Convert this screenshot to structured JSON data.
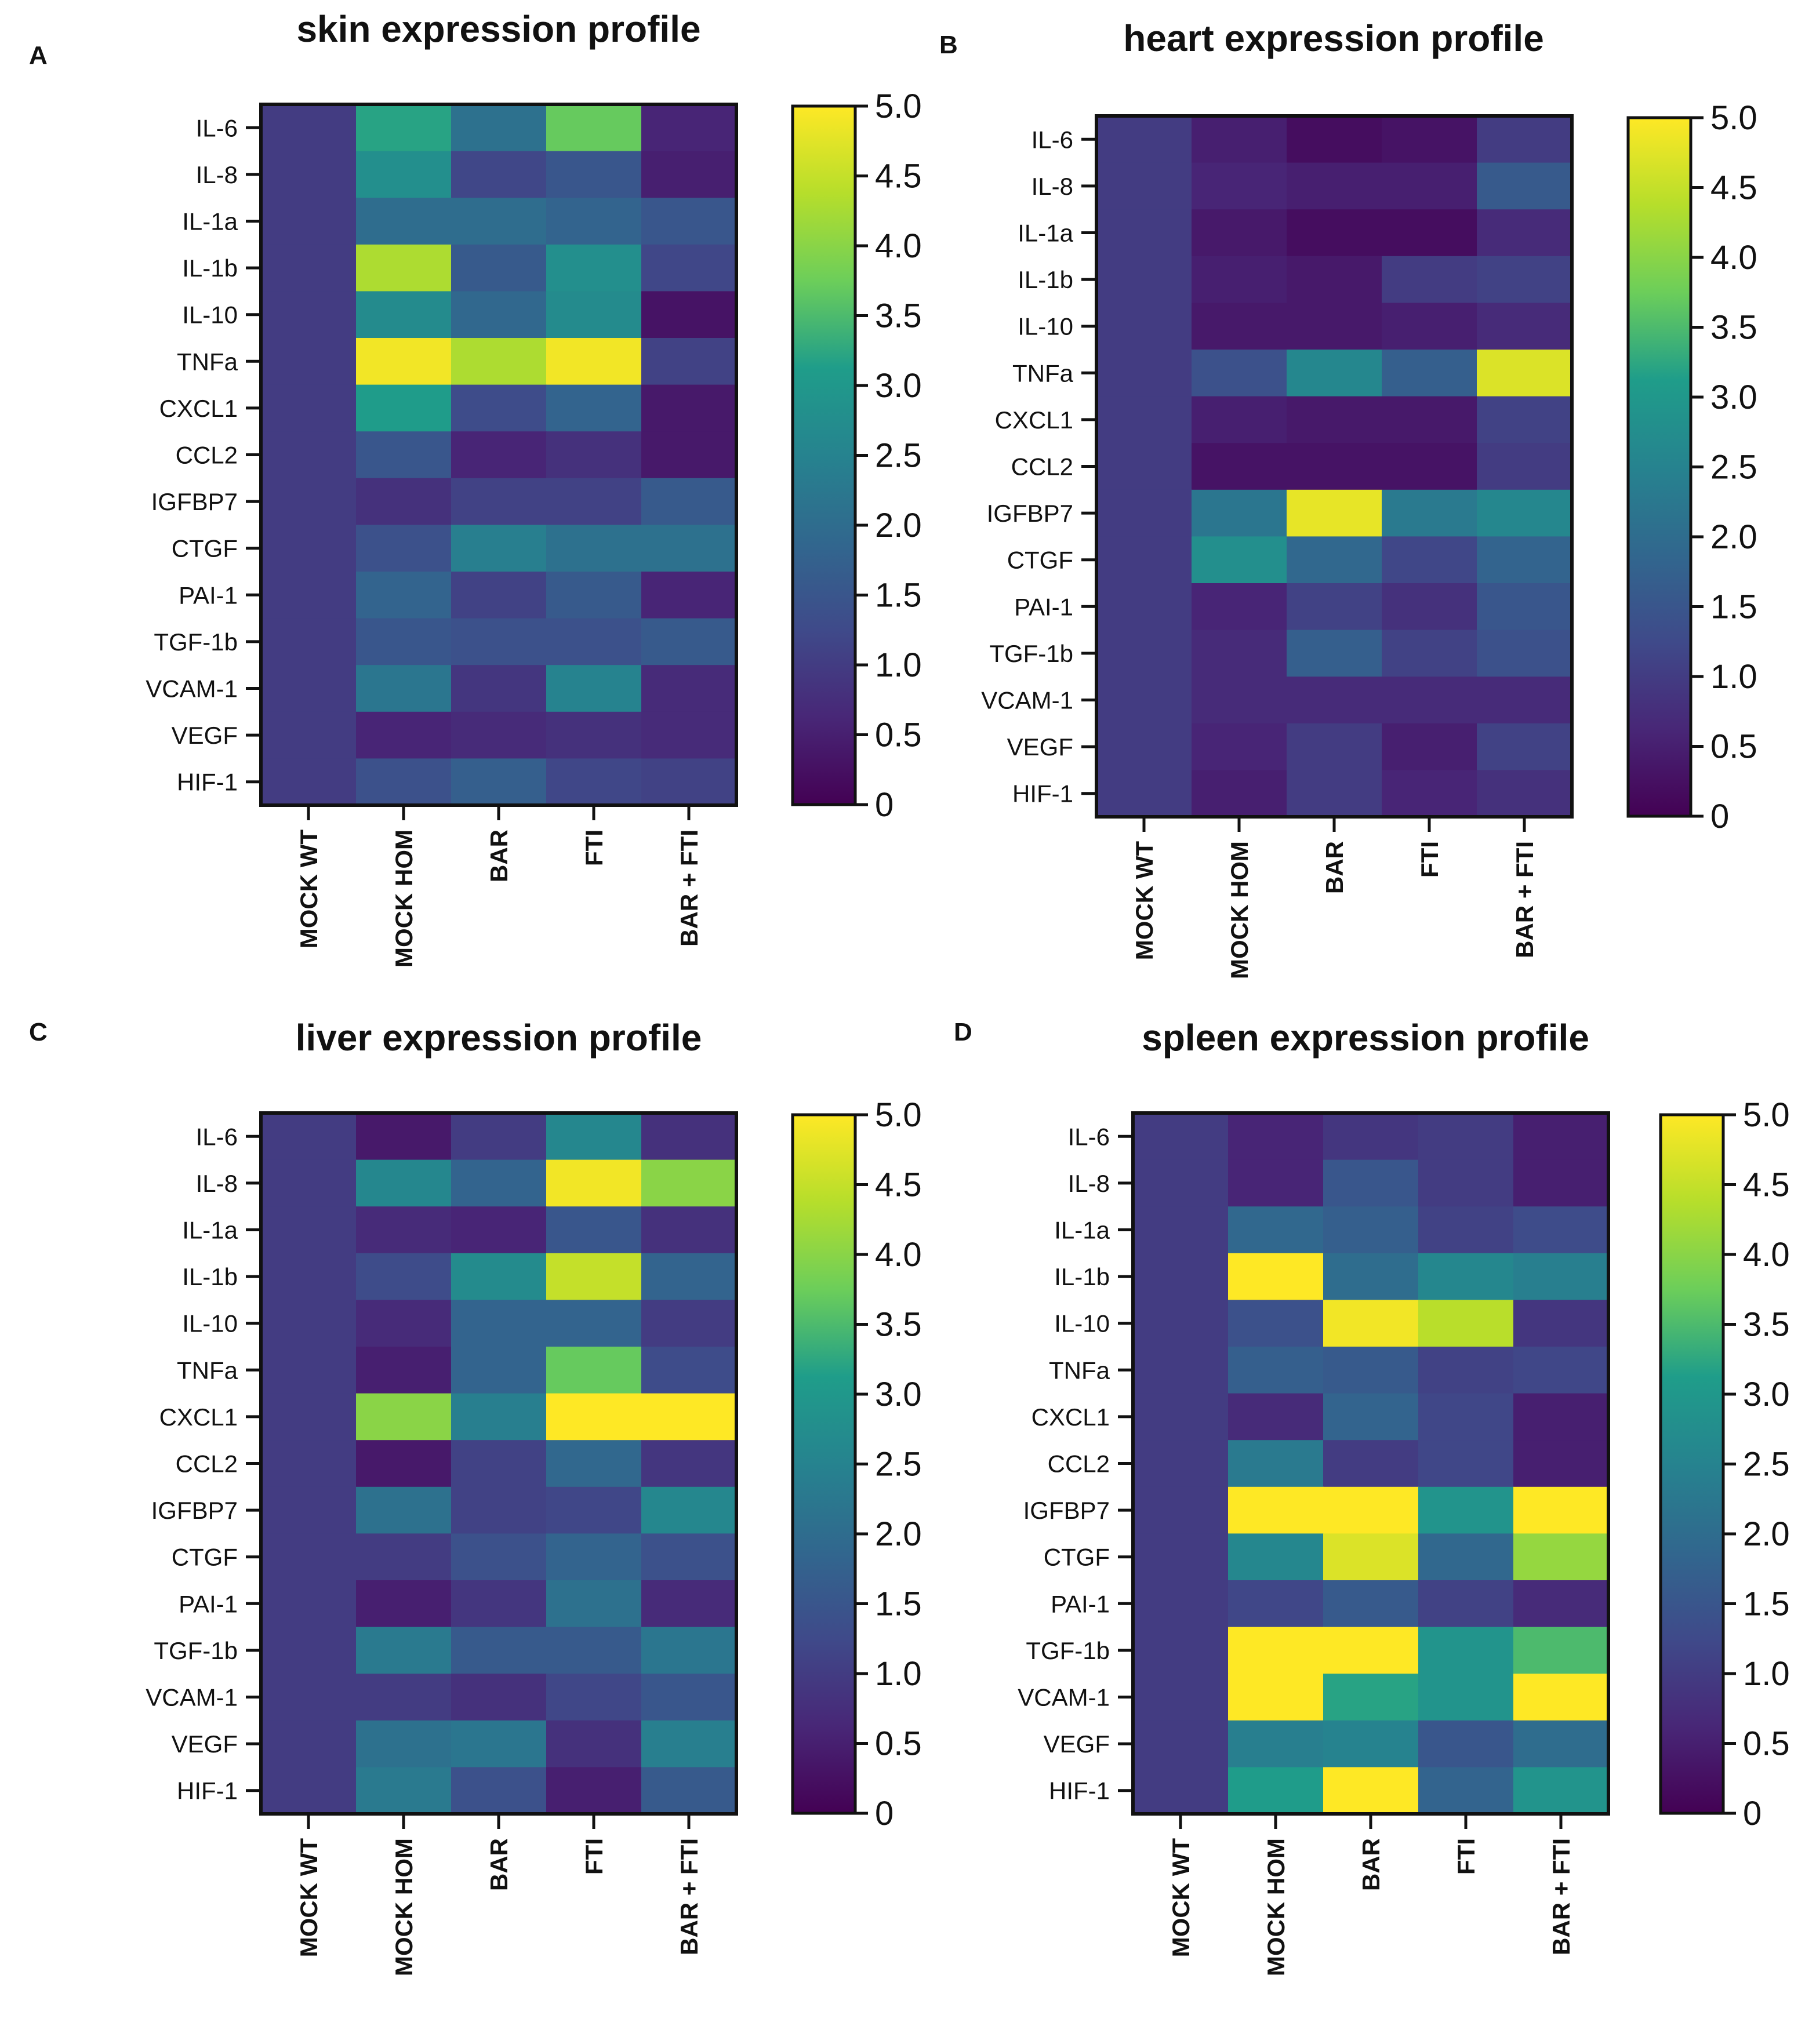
{
  "colormap": {
    "name": "viridis",
    "stops": [
      "#440154",
      "#482777",
      "#3f4a8a",
      "#31678e",
      "#26838f",
      "#1f9d8a",
      "#6cce5a",
      "#b6de2b",
      "#fee825"
    ]
  },
  "chart_data": [
    {
      "type": "heatmap",
      "panel_label": "A",
      "title": "skin expression profile",
      "rows": [
        "IL-6",
        "IL-8",
        "IL-1a",
        "IL-1b",
        "IL-10",
        "TNFa",
        "CXCL1",
        "CCL2",
        "IGFBP7",
        "CTGF",
        "PAI-1",
        "TGF-1b",
        "VCAM-1",
        "VEGF",
        "HIF-1"
      ],
      "columns": [
        "MOCK WT",
        "MOCK HOM",
        "BAR",
        "FTI",
        "BAR + FTI"
      ],
      "values": [
        [
          1.0,
          3.2,
          2.1,
          3.7,
          0.6
        ],
        [
          1.0,
          2.8,
          1.2,
          1.5,
          0.5
        ],
        [
          1.0,
          2.0,
          2.0,
          1.8,
          1.5
        ],
        [
          1.0,
          4.3,
          1.6,
          2.8,
          1.2
        ],
        [
          1.0,
          2.7,
          1.9,
          2.7,
          0.3
        ],
        [
          1.0,
          4.9,
          4.3,
          4.9,
          1.1
        ],
        [
          1.0,
          3.1,
          1.3,
          1.8,
          0.4
        ],
        [
          1.0,
          1.5,
          0.6,
          0.8,
          0.4
        ],
        [
          1.0,
          0.8,
          1.1,
          1.1,
          1.6
        ],
        [
          1.0,
          1.4,
          2.4,
          2.1,
          2.1
        ],
        [
          1.0,
          1.8,
          1.1,
          1.6,
          0.6
        ],
        [
          1.0,
          1.5,
          1.4,
          1.4,
          1.6
        ],
        [
          1.0,
          2.2,
          0.9,
          2.5,
          0.7
        ],
        [
          1.0,
          0.6,
          0.7,
          0.8,
          0.7
        ],
        [
          1.0,
          1.4,
          1.7,
          1.2,
          1.1
        ]
      ],
      "colorbar": {
        "min": 0,
        "max": 5,
        "ticks": [
          "0",
          "0.5",
          "1.0",
          "1.5",
          "2.0",
          "2.5",
          "3.0",
          "3.5",
          "4.0",
          "4.5",
          "5.0"
        ]
      }
    },
    {
      "type": "heatmap",
      "panel_label": "B",
      "title": "heart expression profile",
      "rows": [
        "IL-6",
        "IL-8",
        "IL-1a",
        "IL-1b",
        "IL-10",
        "TNFa",
        "CXCL1",
        "CCL2",
        "IGFBP7",
        "CTGF",
        "PAI-1",
        "TGF-1b",
        "VCAM-1",
        "VEGF",
        "HIF-1"
      ],
      "columns": [
        "MOCK WT",
        "MOCK HOM",
        "BAR",
        "FTI",
        "BAR + FTI"
      ],
      "values": [
        [
          1.0,
          0.5,
          0.2,
          0.3,
          1.0
        ],
        [
          1.0,
          0.6,
          0.5,
          0.5,
          1.6
        ],
        [
          1.0,
          0.4,
          0.2,
          0.2,
          0.7
        ],
        [
          1.0,
          0.5,
          0.4,
          1.0,
          1.1
        ],
        [
          1.0,
          0.4,
          0.4,
          0.5,
          0.7
        ],
        [
          1.0,
          1.4,
          2.6,
          1.7,
          4.7
        ],
        [
          1.0,
          0.5,
          0.4,
          0.4,
          1.1
        ],
        [
          1.0,
          0.3,
          0.3,
          0.3,
          1.0
        ],
        [
          1.0,
          2.2,
          4.8,
          2.3,
          2.6
        ],
        [
          1.0,
          2.8,
          1.9,
          1.2,
          1.8
        ],
        [
          1.0,
          0.6,
          1.1,
          0.8,
          1.5
        ],
        [
          1.0,
          0.7,
          1.7,
          1.1,
          1.4
        ],
        [
          1.0,
          0.7,
          0.7,
          0.7,
          0.7
        ],
        [
          1.0,
          0.6,
          1.0,
          0.5,
          1.1
        ],
        [
          1.0,
          0.5,
          1.0,
          0.6,
          0.8
        ]
      ],
      "colorbar": {
        "min": 0,
        "max": 5,
        "ticks": [
          "0",
          "0.5",
          "1.0",
          "1.5",
          "2.0",
          "2.5",
          "3.0",
          "3.5",
          "4.0",
          "4.5",
          "5.0"
        ]
      }
    },
    {
      "type": "heatmap",
      "panel_label": "C",
      "title": "liver expression profile",
      "rows": [
        "IL-6",
        "IL-8",
        "IL-1a",
        "IL-1b",
        "IL-10",
        "TNFa",
        "CXCL1",
        "CCL2",
        "IGFBP7",
        "CTGF",
        "PAI-1",
        "TGF-1b",
        "VCAM-1",
        "VEGF",
        "HIF-1"
      ],
      "columns": [
        "MOCK WT",
        "MOCK HOM",
        "BAR",
        "FTI",
        "BAR + FTI"
      ],
      "values": [
        [
          1.0,
          0.4,
          1.0,
          2.6,
          0.8
        ],
        [
          1.0,
          2.6,
          1.8,
          4.9,
          4.0
        ],
        [
          1.0,
          0.7,
          0.6,
          1.5,
          0.8
        ],
        [
          1.0,
          1.3,
          2.7,
          4.5,
          1.8
        ],
        [
          1.0,
          0.7,
          1.8,
          1.8,
          1.0
        ],
        [
          1.0,
          0.5,
          1.8,
          3.7,
          1.3
        ],
        [
          1.0,
          4.0,
          2.4,
          5.0,
          5.0
        ],
        [
          1.0,
          0.4,
          1.1,
          1.9,
          0.9
        ],
        [
          1.0,
          2.1,
          1.1,
          1.2,
          2.6
        ],
        [
          1.0,
          1.0,
          1.4,
          1.8,
          1.4
        ],
        [
          1.0,
          0.5,
          0.9,
          2.1,
          0.7
        ],
        [
          1.0,
          2.3,
          1.6,
          1.6,
          2.2
        ],
        [
          1.0,
          1.0,
          0.8,
          1.2,
          1.5
        ],
        [
          1.0,
          2.1,
          2.2,
          0.8,
          2.4
        ],
        [
          1.0,
          2.3,
          1.4,
          0.5,
          1.6
        ]
      ],
      "colorbar": {
        "min": 0,
        "max": 5,
        "ticks": [
          "0",
          "0.5",
          "1.0",
          "1.5",
          "2.0",
          "2.5",
          "3.0",
          "3.5",
          "4.0",
          "4.5",
          "5.0"
        ]
      }
    },
    {
      "type": "heatmap",
      "panel_label": "D",
      "title": "spleen expression profile",
      "rows": [
        "IL-6",
        "IL-8",
        "IL-1a",
        "IL-1b",
        "IL-10",
        "TNFa",
        "CXCL1",
        "CCL2",
        "IGFBP7",
        "CTGF",
        "PAI-1",
        "TGF-1b",
        "VCAM-1",
        "VEGF",
        "HIF-1"
      ],
      "columns": [
        "MOCK WT",
        "MOCK HOM",
        "BAR",
        "FTI",
        "BAR + FTI"
      ],
      "values": [
        [
          1.0,
          0.6,
          0.9,
          1.0,
          0.5
        ],
        [
          1.0,
          0.6,
          1.5,
          1.0,
          0.5
        ],
        [
          1.0,
          1.9,
          1.7,
          1.1,
          1.3
        ],
        [
          1.0,
          5.0,
          2.0,
          2.6,
          2.4
        ],
        [
          1.0,
          1.4,
          4.9,
          4.4,
          0.9
        ],
        [
          1.0,
          1.7,
          1.6,
          1.1,
          1.2
        ],
        [
          1.0,
          0.7,
          1.8,
          1.2,
          0.5
        ],
        [
          1.0,
          2.3,
          1.0,
          1.2,
          0.5
        ],
        [
          1.0,
          5.0,
          5.0,
          2.9,
          5.0
        ],
        [
          1.0,
          2.6,
          4.7,
          1.9,
          4.1
        ],
        [
          1.0,
          1.2,
          1.6,
          1.1,
          0.7
        ],
        [
          1.0,
          5.0,
          5.0,
          2.9,
          3.5
        ],
        [
          1.0,
          5.0,
          3.2,
          2.9,
          5.0
        ],
        [
          1.0,
          2.4,
          2.5,
          1.5,
          2.0
        ],
        [
          1.0,
          3.1,
          5.0,
          1.8,
          2.9
        ]
      ],
      "colorbar": {
        "min": 0,
        "max": 5,
        "ticks": [
          "0",
          "0.5",
          "1.0",
          "1.5",
          "2.0",
          "2.5",
          "3.0",
          "3.5",
          "4.0",
          "4.5",
          "5.0"
        ]
      }
    }
  ]
}
